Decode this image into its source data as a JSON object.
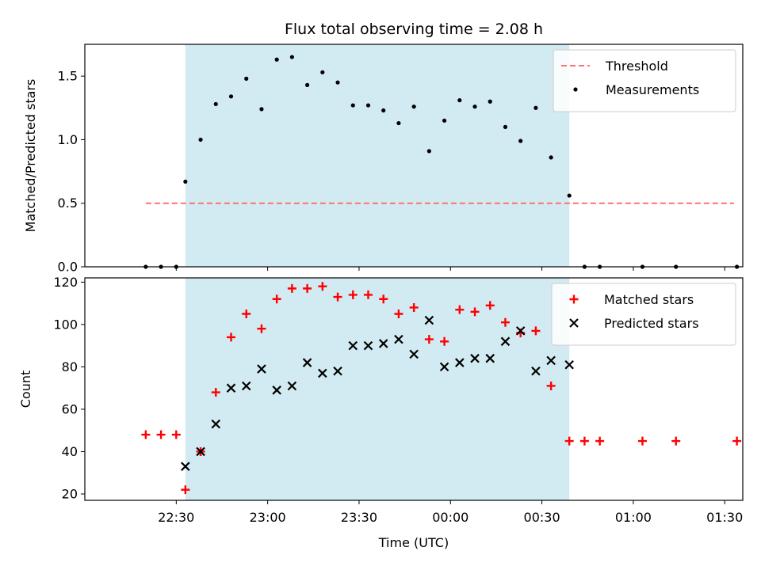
{
  "title": "Flux total observing time = 2.08 h",
  "xlabel": "Time (UTC)",
  "colors": {
    "threshold": "#ff7070",
    "shade": "#add8e6",
    "matched": "#ff0000",
    "predicted": "#000000",
    "measurement": "#000000"
  },
  "chart_data": [
    {
      "type": "scatter",
      "ylabel": "Matched/Predicted stars",
      "ylim": [
        0,
        1.75
      ],
      "y_ticks": [
        0.0,
        0.5,
        1.0,
        1.5
      ],
      "y_tick_labels": [
        "0.0",
        "0.5",
        "1.0",
        "1.5"
      ],
      "x_tick_times": [
        "22:30",
        "23:00",
        "23:30",
        "00:00",
        "00:30",
        "01:00",
        "01:30"
      ],
      "shaded_range": [
        "22:33",
        "00:39"
      ],
      "legend_position": "upper right",
      "threshold": {
        "name": "Threshold",
        "value": 0.5,
        "x_range": [
          "22:20",
          "01:33"
        ]
      },
      "series": [
        {
          "name": "Measurements",
          "x": [
            "22:20",
            "22:25",
            "22:30",
            "22:33",
            "22:38",
            "22:43",
            "22:48",
            "22:53",
            "22:58",
            "23:03",
            "23:08",
            "23:13",
            "23:18",
            "23:23",
            "23:28",
            "23:33",
            "23:38",
            "23:43",
            "23:48",
            "23:53",
            "23:58",
            "00:03",
            "00:08",
            "00:13",
            "00:18",
            "00:23",
            "00:28",
            "00:33",
            "00:39",
            "00:44",
            "00:49",
            "01:03",
            "01:14",
            "01:34"
          ],
          "y": [
            0,
            0,
            0,
            0.67,
            1.0,
            1.28,
            1.34,
            1.48,
            1.24,
            1.63,
            1.65,
            1.43,
            1.53,
            1.45,
            1.27,
            1.27,
            1.23,
            1.13,
            1.26,
            0.91,
            1.15,
            1.31,
            1.26,
            1.3,
            1.1,
            0.99,
            1.25,
            0.86,
            0.56,
            0,
            0,
            0,
            0,
            0
          ]
        }
      ]
    },
    {
      "type": "scatter",
      "ylabel": "Count",
      "ylim": [
        17,
        122
      ],
      "y_ticks": [
        20,
        40,
        60,
        80,
        100,
        120
      ],
      "y_tick_labels": [
        "20",
        "40",
        "60",
        "80",
        "100",
        "120"
      ],
      "x_tick_times": [
        "22:30",
        "23:00",
        "23:30",
        "00:00",
        "00:30",
        "01:00",
        "01:30"
      ],
      "x_tick_labels": [
        "22:30",
        "23:00",
        "23:30",
        "00:00",
        "00:30",
        "01:00",
        "01:30"
      ],
      "shaded_range": [
        "22:33",
        "00:39"
      ],
      "legend_position": "upper right",
      "series": [
        {
          "name": "Matched stars",
          "x": [
            "22:20",
            "22:25",
            "22:30",
            "22:33",
            "22:38",
            "22:43",
            "22:48",
            "22:53",
            "22:58",
            "23:03",
            "23:08",
            "23:13",
            "23:18",
            "23:23",
            "23:28",
            "23:33",
            "23:38",
            "23:43",
            "23:48",
            "23:53",
            "23:58",
            "00:03",
            "00:08",
            "00:13",
            "00:18",
            "00:23",
            "00:28",
            "00:33",
            "00:39",
            "00:44",
            "00:49",
            "01:03",
            "01:14",
            "01:34"
          ],
          "y": [
            48,
            48,
            48,
            22,
            40,
            68,
            94,
            105,
            98,
            112,
            117,
            117,
            118,
            113,
            114,
            114,
            112,
            105,
            108,
            93,
            92,
            107,
            106,
            109,
            101,
            96,
            97,
            71,
            45,
            45,
            45,
            45,
            45,
            45
          ]
        },
        {
          "name": "Predicted stars",
          "x": [
            "22:33",
            "22:38",
            "22:43",
            "22:48",
            "22:53",
            "22:58",
            "23:03",
            "23:08",
            "23:13",
            "23:18",
            "23:23",
            "23:28",
            "23:33",
            "23:38",
            "23:43",
            "23:48",
            "23:53",
            "23:58",
            "00:03",
            "00:08",
            "00:13",
            "00:18",
            "00:23",
            "00:28",
            "00:33",
            "00:39"
          ],
          "y": [
            33,
            40,
            53,
            70,
            71,
            79,
            69,
            71,
            82,
            77,
            78,
            90,
            90,
            91,
            93,
            86,
            102,
            80,
            82,
            84,
            84,
            92,
            97,
            78,
            83,
            81
          ]
        }
      ]
    }
  ]
}
